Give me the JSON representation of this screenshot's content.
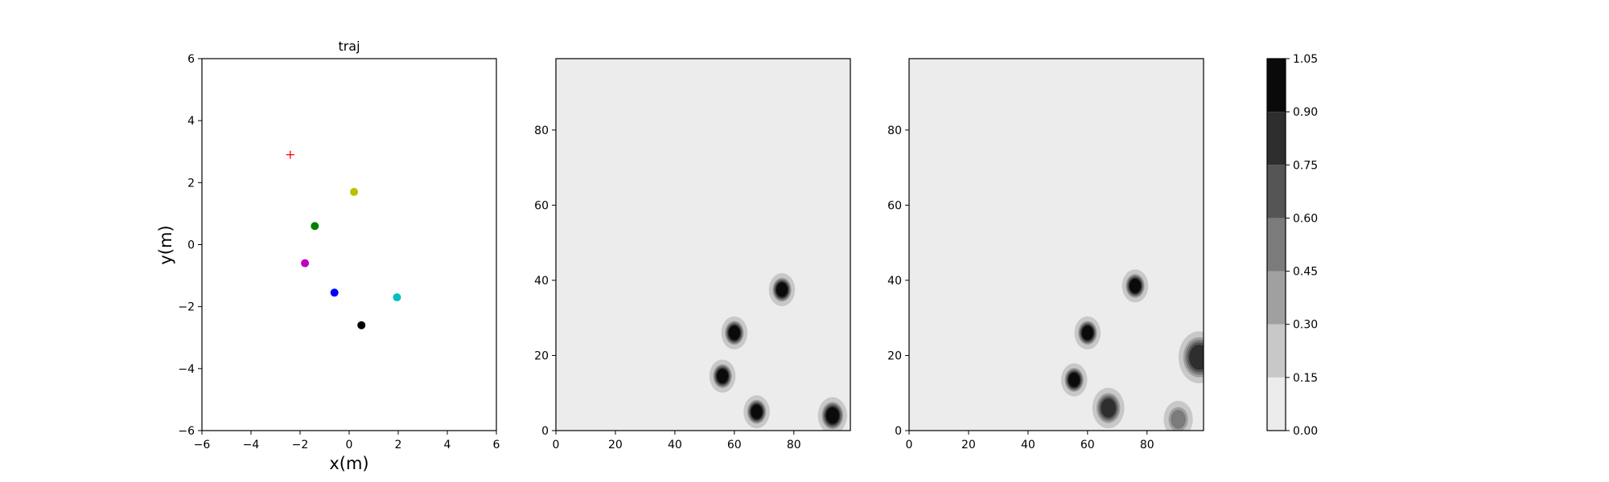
{
  "chart_data": [
    {
      "type": "scatter",
      "title": "traj",
      "xlabel": "x(m)",
      "ylabel": "y(m)",
      "xlim": [
        -6,
        6
      ],
      "ylim": [
        -6,
        6
      ],
      "xticks": [
        "−6",
        "−4",
        "−2",
        "0",
        "2",
        "4",
        "6"
      ],
      "yticks": [
        "−6",
        "−4",
        "−2",
        "0",
        "2",
        "4",
        "6"
      ],
      "grid": false,
      "points": [
        {
          "x": -2.4,
          "y": 2.9,
          "color": "#ff0000",
          "marker": "plus"
        },
        {
          "x": 0.2,
          "y": 1.7,
          "color": "#bfbf00",
          "marker": "circle"
        },
        {
          "x": -1.4,
          "y": 0.6,
          "color": "#008000",
          "marker": "circle"
        },
        {
          "x": -1.8,
          "y": -0.6,
          "color": "#bf00bf",
          "marker": "circle"
        },
        {
          "x": -0.6,
          "y": -1.55,
          "color": "#0000ff",
          "marker": "circle"
        },
        {
          "x": 1.95,
          "y": -1.7,
          "color": "#00bfbf",
          "marker": "circle"
        },
        {
          "x": 0.5,
          "y": -2.6,
          "color": "#000000",
          "marker": "circle"
        }
      ]
    },
    {
      "type": "heatmap",
      "xlim": [
        0,
        99
      ],
      "ylim": [
        0,
        99
      ],
      "xticks": [
        "0",
        "20",
        "40",
        "60",
        "80"
      ],
      "yticks": [
        "0",
        "20",
        "40",
        "60",
        "80"
      ],
      "background_level": 0.05,
      "blobs": [
        {
          "x": 76,
          "y": 37.5,
          "r": 3.5,
          "level": 1.0
        },
        {
          "x": 60,
          "y": 26,
          "r": 3.5,
          "level": 1.0
        },
        {
          "x": 56,
          "y": 14.5,
          "r": 3.5,
          "level": 1.0
        },
        {
          "x": 67.5,
          "y": 5,
          "r": 3.5,
          "level": 1.0
        },
        {
          "x": 93,
          "y": 4,
          "r": 4,
          "level": 1.0
        }
      ]
    },
    {
      "type": "heatmap",
      "xlim": [
        0,
        99
      ],
      "ylim": [
        0,
        99
      ],
      "xticks": [
        "0",
        "20",
        "40",
        "60",
        "80"
      ],
      "yticks": [
        "0",
        "20",
        "40",
        "60",
        "80"
      ],
      "background_level": 0.05,
      "blobs": [
        {
          "x": 76,
          "y": 38.5,
          "r": 3.5,
          "level": 1.0
        },
        {
          "x": 60,
          "y": 26,
          "r": 3.5,
          "level": 1.0
        },
        {
          "x": 55.5,
          "y": 13.5,
          "r": 3.5,
          "level": 1.0
        },
        {
          "x": 67,
          "y": 6,
          "r": 4.5,
          "level": 0.75
        },
        {
          "x": 97.5,
          "y": 19.5,
          "r": 6,
          "level": 0.85
        },
        {
          "x": 90.5,
          "y": 3,
          "r": 4,
          "level": 0.45
        }
      ]
    },
    {
      "type": "colorbar",
      "levels": [
        0.0,
        0.15,
        0.3,
        0.45,
        0.6,
        0.75,
        0.9,
        1.05
      ],
      "tick_labels": [
        "0.00",
        "0.15",
        "0.30",
        "0.45",
        "0.60",
        "0.75",
        "0.90",
        "1.05"
      ],
      "colors": [
        "#ececec",
        "#c8c8c8",
        "#a0a0a0",
        "#7b7b7b",
        "#555555",
        "#2e2e2e",
        "#0a0a0a"
      ]
    }
  ]
}
